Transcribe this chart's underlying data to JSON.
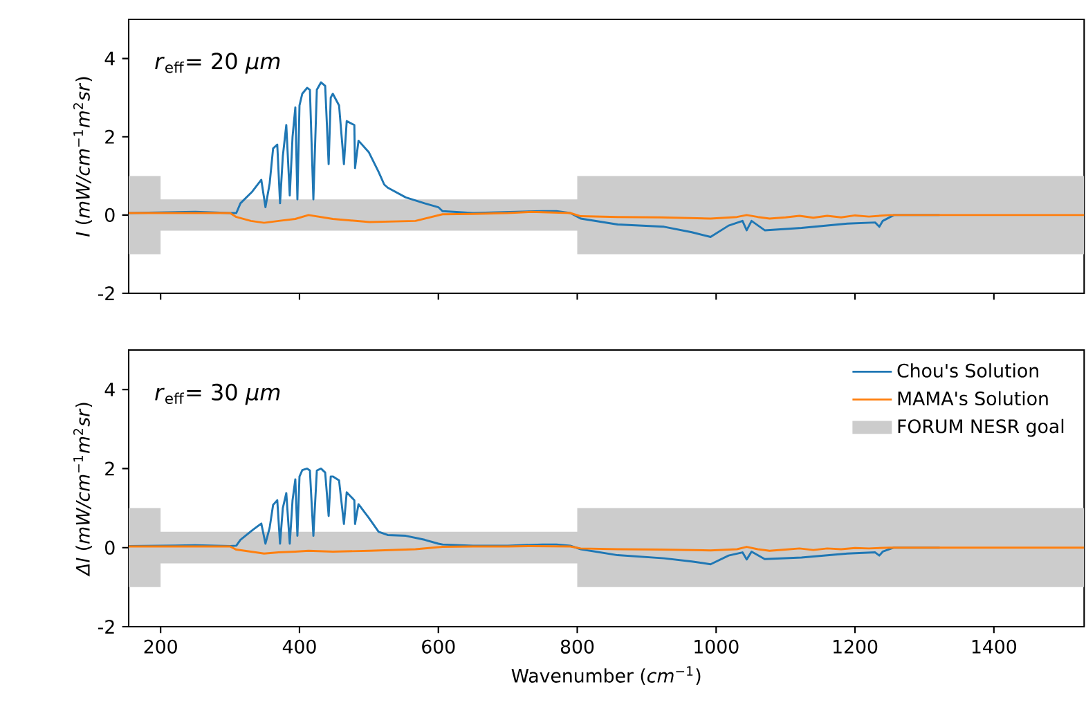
{
  "chart_data": [
    {
      "type": "line",
      "ylabel": "*I* (*mW/cm*$^{−1}$*m*$^{2}$*sr*)",
      "annotations": [
        "*r*$_{eff}$= 20 *μm*"
      ],
      "xlim": [
        154,
        1530
      ],
      "ylim": [
        -2,
        5
      ],
      "xticks": [
        200,
        400,
        600,
        800,
        1000,
        1200,
        1400
      ],
      "yticks": [
        -2,
        0,
        2,
        4
      ],
      "tick_labels": "y",
      "series": [
        {
          "type": "line",
          "color": "#cccccc",
          "x": [
            154,
            200,
            200,
            800,
            800,
            1530
          ],
          "values": [
            null,
            null,
            null,
            null,
            null,
            null
          ],
          "lower": [
            -1,
            -1,
            -0.4,
            -0.4,
            -1,
            -1
          ],
          "upper": [
            1,
            1,
            0.4,
            0.4,
            1,
            1
          ]
        },
        {
          "color": "#1f77b4",
          "x": [
            154,
            200,
            250,
            300,
            309,
            315,
            332,
            345,
            351,
            357,
            362,
            368,
            372,
            376,
            381,
            386,
            390,
            394,
            397,
            400,
            404,
            411,
            415,
            420,
            425,
            431,
            437,
            442,
            445,
            448,
            457,
            464,
            468,
            479,
            480,
            485,
            500,
            514,
            522,
            527,
            553,
            580,
            600,
            606,
            650,
            700,
            750,
            770,
            790,
            805,
            858,
            925,
            965,
            992,
            1018,
            1038,
            1044,
            1051,
            1070,
            1123,
            1189,
            1229,
            1235,
            1240,
            1256,
            1322
          ],
          "values": [
            0.05,
            null,
            0.08,
            0.05,
            0.05,
            0.3,
            0.6,
            0.9,
            0.2,
            0.8,
            1.7,
            1.8,
            0.3,
            1.5,
            2.3,
            0.5,
            2.0,
            2.75,
            0.4,
            2.8,
            3.1,
            3.25,
            3.2,
            0.4,
            3.2,
            3.39,
            3.3,
            1.3,
            3.0,
            3.1,
            2.8,
            1.3,
            2.4,
            2.3,
            1.2,
            1.9,
            1.6,
            1.1,
            0.78,
            0.7,
            0.45,
            0.3,
            0.2,
            0.1,
            0.05,
            null,
            0.1,
            0.1,
            0.05,
            -0.09,
            -0.24,
            -0.3,
            -0.44,
            -0.56,
            -0.27,
            -0.15,
            -0.39,
            -0.15,
            -0.39,
            -0.33,
            -0.22,
            -0.19,
            -0.3,
            -0.15,
            0.0,
            0.0
          ]
        },
        {
          "color": "#ff7f0e",
          "x": [
            154,
            250,
            300,
            309,
            330,
            349,
            370,
            394,
            413,
            448,
            501,
            567,
            606,
            650,
            700,
            733,
            790,
            805,
            858,
            920,
            992,
            1030,
            1044,
            1060,
            1077,
            1100,
            1120,
            1140,
            1160,
            1180,
            1200,
            1220,
            1250,
            1300,
            1400,
            1530
          ],
          "values": [
            0.05,
            0.05,
            0.05,
            -0.05,
            -0.15,
            -0.2,
            -0.15,
            -0.1,
            0.0,
            -0.1,
            -0.18,
            -0.15,
            0.02,
            0.03,
            0.05,
            0.08,
            0.05,
            -0.03,
            -0.05,
            -0.06,
            -0.09,
            -0.05,
            0.0,
            -0.05,
            -0.09,
            -0.06,
            -0.02,
            -0.07,
            -0.02,
            -0.06,
            -0.01,
            -0.04,
            0.0,
            0.0,
            0.0,
            0.0
          ]
        }
      ]
    },
    {
      "type": "line",
      "xlabel": "Wavenumber (*cm*$^{−1}$)",
      "ylabel": "*ΔI* (*mW/cm*$^{−1}$*m*$^{2}$*sr*)",
      "annotations": [
        "*r*$_{eff}$= 30 *μm*"
      ],
      "xlim": [
        154,
        1530
      ],
      "ylim": [
        -2,
        5
      ],
      "xticks": [
        200,
        400,
        600,
        800,
        1000,
        1200,
        1400
      ],
      "yticks": [
        -2,
        0,
        2,
        4
      ],
      "legend": "top right",
      "series": [
        {
          "name": "Chou's Solution",
          "color": "#1f77b4",
          "x": [
            154,
            200,
            250,
            300,
            309,
            315,
            332,
            345,
            351,
            357,
            362,
            368,
            372,
            376,
            381,
            386,
            390,
            394,
            397,
            400,
            404,
            411,
            415,
            420,
            425,
            431,
            437,
            442,
            445,
            448,
            457,
            464,
            468,
            479,
            480,
            485,
            500,
            514,
            522,
            527,
            553,
            580,
            600,
            606,
            650,
            700,
            750,
            770,
            790,
            805,
            858,
            925,
            965,
            992,
            1018,
            1038,
            1044,
            1051,
            1070,
            1123,
            1189,
            1229,
            1235,
            1240,
            1256,
            1322
          ],
          "values": [
            0.04,
            null,
            0.06,
            0.04,
            0.05,
            0.2,
            0.44,
            0.61,
            0.1,
            0.5,
            1.08,
            1.2,
            0.1,
            1.0,
            1.38,
            0.1,
            1.2,
            1.73,
            0.3,
            1.8,
            1.96,
            2.0,
            1.95,
            0.3,
            1.95,
            2.0,
            1.9,
            0.8,
            1.8,
            1.8,
            1.7,
            0.6,
            1.4,
            1.2,
            0.6,
            1.1,
            0.75,
            0.4,
            0.35,
            0.32,
            0.3,
            0.2,
            0.1,
            0.08,
            0.05,
            0.05,
            0.08,
            0.08,
            0.05,
            -0.04,
            -0.19,
            -0.27,
            -0.35,
            -0.42,
            -0.2,
            -0.12,
            -0.3,
            -0.1,
            -0.29,
            -0.25,
            -0.15,
            -0.12,
            -0.2,
            -0.1,
            0.0,
            0.0
          ]
        },
        {
          "name": "MAMA's Solution",
          "color": "#ff7f0e",
          "x": [
            154,
            250,
            300,
            309,
            330,
            349,
            370,
            394,
            413,
            448,
            501,
            567,
            606,
            650,
            700,
            733,
            790,
            805,
            858,
            920,
            992,
            1030,
            1044,
            1060,
            1077,
            1100,
            1120,
            1140,
            1160,
            1180,
            1200,
            1220,
            1250,
            1300,
            1400,
            1530
          ],
          "values": [
            0.03,
            0.03,
            0.03,
            -0.05,
            -0.1,
            -0.15,
            -0.12,
            -0.1,
            -0.08,
            -0.1,
            -0.08,
            -0.04,
            0.02,
            0.03,
            0.03,
            0.04,
            0.03,
            -0.02,
            -0.04,
            -0.05,
            -0.07,
            -0.04,
            0.02,
            -0.04,
            -0.08,
            -0.05,
            -0.02,
            -0.06,
            -0.02,
            -0.04,
            -0.01,
            -0.02,
            0.0,
            0.0,
            0.0,
            0.0
          ]
        },
        {
          "type": "line",
          "name": "FORUM NESR goal",
          "color": "#cccccc",
          "x": [
            154,
            200,
            200,
            800,
            800,
            1530
          ],
          "values": [
            null,
            null,
            null,
            null,
            null,
            null
          ],
          "lower": [
            -1,
            -1,
            -0.4,
            -0.4,
            -1,
            -1
          ],
          "upper": [
            1,
            1,
            0.4,
            0.4,
            1,
            1
          ]
        }
      ]
    }
  ]
}
